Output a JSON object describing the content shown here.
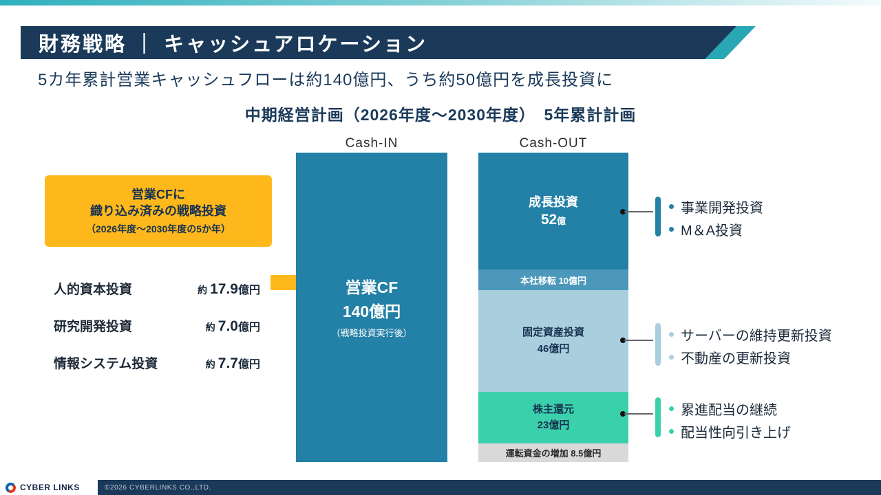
{
  "header": {
    "title": "財務戦略 ｜ キャッシュアロケーション"
  },
  "subtitle": "5カ年累計営業キャッシュフローは約140億円、うち約50億円を成長投資に",
  "section_title": "中期経営計画（2026年度～2030年度）　5年累計計画",
  "columns": {
    "cash_in_label": "Cash-IN",
    "cash_out_label": "Cash-OUT"
  },
  "strategic_box": {
    "line1": "営業CFに",
    "line2": "織り込み済みの戦略投資",
    "line3": "（2026年度～2030年度の5か年）"
  },
  "investments": [
    {
      "label": "人的資本投資",
      "prefix": "約",
      "amount": "17.9",
      "unit": "億円"
    },
    {
      "label": "研究開発投資",
      "prefix": "約",
      "amount": "7.0",
      "unit": "億円"
    },
    {
      "label": "情報システム投資",
      "prefix": "約",
      "amount": "7.7",
      "unit": "億円"
    }
  ],
  "cash_in": {
    "line1": "営業CF",
    "line2": "140億円",
    "line3": "（戦略投資実行後）"
  },
  "cash_out": {
    "growth": {
      "label": "成長投資",
      "value": "52",
      "unit": "億"
    },
    "hq": {
      "text": "本社移転 10億円"
    },
    "fixed": {
      "label": "固定資産投資",
      "value": "46億円"
    },
    "shareholder": {
      "label": "株主還元",
      "value": "23億円"
    },
    "working": {
      "text": "運転資金の増加 8.5億円"
    }
  },
  "annotations": {
    "growth": {
      "items": [
        "事業開発投資",
        "M＆A投資"
      ]
    },
    "fixed": {
      "items": [
        "サーバーの維持更新投資",
        "不動産の更新投資"
      ]
    },
    "shareholder": {
      "items": [
        "累進配当の継続",
        "配当性向引き上げ"
      ]
    }
  },
  "chart_data": {
    "type": "bar",
    "title": "中期経営計画（2026年度～2030年度） 5年累計計画",
    "unit": "億円",
    "stacked": true,
    "categories": [
      "Cash-IN",
      "Cash-OUT"
    ],
    "bars": [
      {
        "name": "Cash-IN",
        "segments": [
          {
            "label": "営業CF（戦略投資実行後）",
            "value": 140
          }
        ]
      },
      {
        "name": "Cash-OUT",
        "segments": [
          {
            "label": "成長投資",
            "value": 52
          },
          {
            "label": "本社移転",
            "value": 10
          },
          {
            "label": "固定資産投資",
            "value": 46
          },
          {
            "label": "株主還元",
            "value": 23
          },
          {
            "label": "運転資金の増加",
            "value": 8.5
          }
        ]
      }
    ],
    "ylim": [
      0,
      140
    ]
  },
  "colors": {
    "navy": "#1b3a5a",
    "teal_accent": "#2aa7b5",
    "bar_blue": "#2380a6",
    "hq_blue": "#4b98bb",
    "light_blue": "#a9cede",
    "green": "#3bd0ac",
    "gray": "#d9d9d9",
    "yellow": "#ffb81c"
  },
  "footer": {
    "logo_text": "CYBER LINKS",
    "copyright": "©2026 CYBERLINKS CO.,LTD."
  }
}
